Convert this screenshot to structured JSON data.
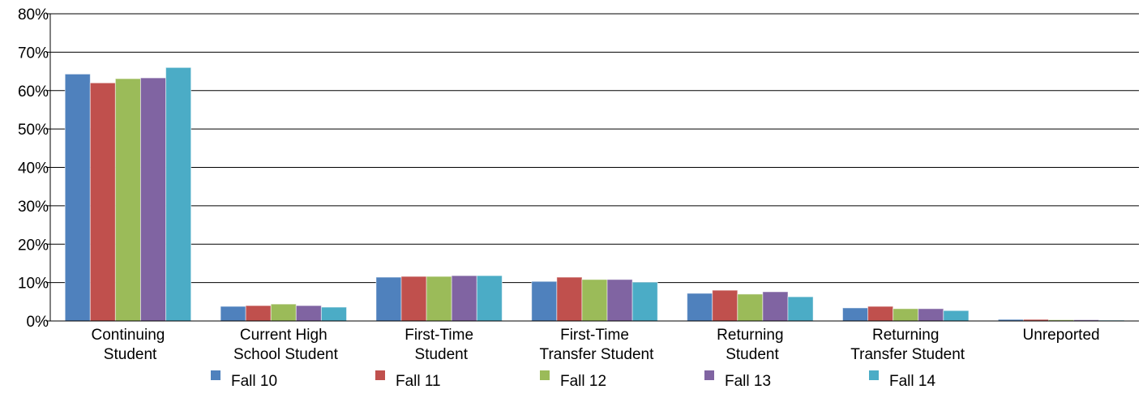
{
  "chart_data": {
    "type": "bar",
    "categories": [
      "Continuing Student",
      "Current High School Student",
      "First-Time Student",
      "First-Time Transfer Student",
      "Returning Student",
      "Returning Transfer Student",
      "Unreported"
    ],
    "series": [
      {
        "name": "Fall 10",
        "color": "#4f81bd",
        "values": [
          64.3,
          3.8,
          11.4,
          10.3,
          7.2,
          3.4,
          0.4
        ]
      },
      {
        "name": "Fall 11",
        "color": "#c0504d",
        "values": [
          62.0,
          4.0,
          11.6,
          11.4,
          8.0,
          3.8,
          0.4
        ]
      },
      {
        "name": "Fall 12",
        "color": "#9bbb59",
        "values": [
          63.1,
          4.4,
          11.6,
          10.8,
          7.0,
          3.2,
          0.3
        ]
      },
      {
        "name": "Fall 13",
        "color": "#8064a2",
        "values": [
          63.3,
          4.0,
          11.8,
          10.8,
          7.6,
          3.2,
          0.3
        ]
      },
      {
        "name": "Fall 14",
        "color": "#4bacc6",
        "values": [
          66.0,
          3.6,
          11.8,
          10.1,
          6.3,
          2.7,
          0.2
        ]
      }
    ],
    "ylim": [
      0,
      80
    ],
    "yticks": [
      {
        "value": 0,
        "label": "0%"
      },
      {
        "value": 10,
        "label": "10%"
      },
      {
        "value": 20,
        "label": "20%"
      },
      {
        "value": 30,
        "label": "30%"
      },
      {
        "value": 40,
        "label": "40%"
      },
      {
        "value": 50,
        "label": "50%"
      },
      {
        "value": 60,
        "label": "60%"
      },
      {
        "value": 70,
        "label": "70%"
      },
      {
        "value": 80,
        "label": "80%"
      }
    ],
    "grid": true,
    "legend": "bottom"
  }
}
